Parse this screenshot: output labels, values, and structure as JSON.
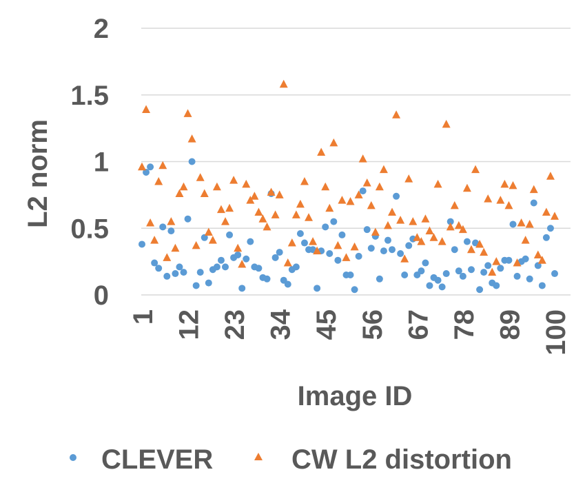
{
  "chart_data": {
    "type": "scatter",
    "xlabel": "Image ID",
    "ylabel": "L2 norm",
    "ylim": [
      0,
      2
    ],
    "yticks": [
      "0",
      "0.5",
      "1",
      "1.5",
      "2"
    ],
    "xlim": [
      1,
      100
    ],
    "xticks": [
      "1",
      "12",
      "23",
      "34",
      "45",
      "56",
      "67",
      "78",
      "89",
      "100"
    ],
    "grid": "horizontal",
    "legend": "bottom",
    "series": [
      {
        "name": "CLEVER",
        "marker": "circle",
        "color": "#5B9BD5",
        "x": [
          1,
          2,
          3,
          4,
          5,
          6,
          7,
          8,
          9,
          10,
          11,
          12,
          13,
          14,
          15,
          16,
          17,
          18,
          19,
          20,
          21,
          22,
          23,
          24,
          25,
          26,
          27,
          28,
          29,
          30,
          31,
          32,
          33,
          34,
          35,
          36,
          37,
          38,
          39,
          40,
          41,
          42,
          43,
          44,
          45,
          46,
          47,
          48,
          49,
          50,
          51,
          52,
          53,
          54,
          55,
          56,
          57,
          58,
          59,
          60,
          61,
          62,
          63,
          64,
          65,
          66,
          67,
          68,
          69,
          70,
          71,
          72,
          73,
          74,
          75,
          76,
          77,
          78,
          79,
          80,
          81,
          82,
          83,
          84,
          85,
          86,
          87,
          88,
          89,
          90,
          91,
          92,
          93,
          94,
          95,
          96,
          97,
          98,
          99,
          100
        ],
        "y": [
          0.38,
          0.92,
          0.96,
          0.24,
          0.2,
          0.51,
          0.14,
          0.48,
          0.16,
          0.21,
          0.17,
          0.57,
          1.0,
          0.07,
          0.17,
          0.43,
          0.09,
          0.19,
          0.21,
          0.26,
          0.21,
          0.45,
          0.28,
          0.3,
          0.05,
          0.27,
          0.4,
          0.21,
          0.2,
          0.13,
          0.12,
          0.76,
          0.28,
          0.32,
          0.11,
          0.08,
          0.19,
          0.21,
          0.46,
          0.39,
          0.34,
          0.34,
          0.05,
          0.33,
          0.51,
          0.31,
          0.55,
          0.26,
          0.45,
          0.15,
          0.15,
          0.04,
          0.29,
          0.78,
          0.49,
          0.35,
          0.44,
          0.12,
          0.33,
          0.41,
          0.34,
          0.74,
          0.31,
          0.15,
          0.37,
          0.42,
          0.15,
          0.18,
          0.24,
          0.07,
          0.13,
          0.11,
          0.06,
          0.16,
          0.55,
          0.34,
          0.18,
          0.14,
          0.4,
          0.19,
          0.39,
          0.04,
          0.17,
          0.22,
          0.09,
          0.07,
          0.2,
          0.26,
          0.26,
          0.53,
          0.14,
          0.25,
          0.27,
          0.12,
          0.69,
          0.22,
          0.07,
          0.43,
          0.5,
          0.16
        ]
      },
      {
        "name": "CW L2 distortion",
        "marker": "triangle",
        "color": "#ED7D31",
        "x": [
          1,
          2,
          3,
          4,
          5,
          6,
          7,
          8,
          9,
          10,
          11,
          12,
          13,
          14,
          15,
          16,
          17,
          18,
          19,
          20,
          21,
          22,
          23,
          24,
          25,
          26,
          27,
          28,
          29,
          30,
          31,
          32,
          33,
          34,
          35,
          36,
          37,
          38,
          39,
          40,
          41,
          42,
          43,
          44,
          45,
          46,
          47,
          48,
          49,
          50,
          51,
          52,
          53,
          54,
          55,
          56,
          57,
          58,
          59,
          60,
          61,
          62,
          63,
          64,
          65,
          66,
          67,
          68,
          69,
          70,
          71,
          72,
          73,
          74,
          75,
          76,
          77,
          78,
          79,
          80,
          81,
          82,
          83,
          84,
          85,
          86,
          87,
          88,
          89,
          90,
          91,
          92,
          93,
          94,
          95,
          96,
          97,
          98,
          99,
          100
        ],
        "y": [
          0.96,
          1.39,
          0.54,
          0.41,
          0.85,
          0.97,
          0.28,
          0.55,
          0.35,
          0.76,
          0.81,
          1.36,
          1.17,
          0.37,
          0.88,
          0.76,
          0.47,
          0.41,
          0.81,
          0.64,
          0.55,
          0.65,
          0.86,
          0.35,
          0.23,
          0.83,
          0.71,
          0.74,
          0.62,
          0.57,
          0.51,
          0.77,
          0.6,
          0.75,
          1.58,
          0.24,
          0.39,
          0.6,
          0.68,
          0.85,
          0.58,
          0.4,
          0.33,
          1.07,
          0.81,
          0.65,
          1.14,
          0.37,
          0.71,
          0.28,
          0.7,
          0.36,
          0.75,
          1.02,
          0.84,
          0.67,
          0.47,
          0.81,
          0.94,
          0.52,
          0.62,
          1.35,
          0.56,
          0.27,
          0.87,
          0.55,
          0.43,
          0.4,
          0.57,
          0.48,
          0.43,
          0.83,
          0.4,
          1.28,
          0.51,
          0.67,
          0.52,
          0.49,
          0.8,
          0.34,
          0.94,
          0.38,
          0.32,
          0.72,
          0.17,
          0.25,
          0.71,
          0.83,
          0.67,
          0.82,
          0.24,
          0.54,
          0.41,
          0.53,
          0.79,
          0.3,
          0.26,
          0.62,
          0.89,
          0.59
        ]
      }
    ]
  }
}
